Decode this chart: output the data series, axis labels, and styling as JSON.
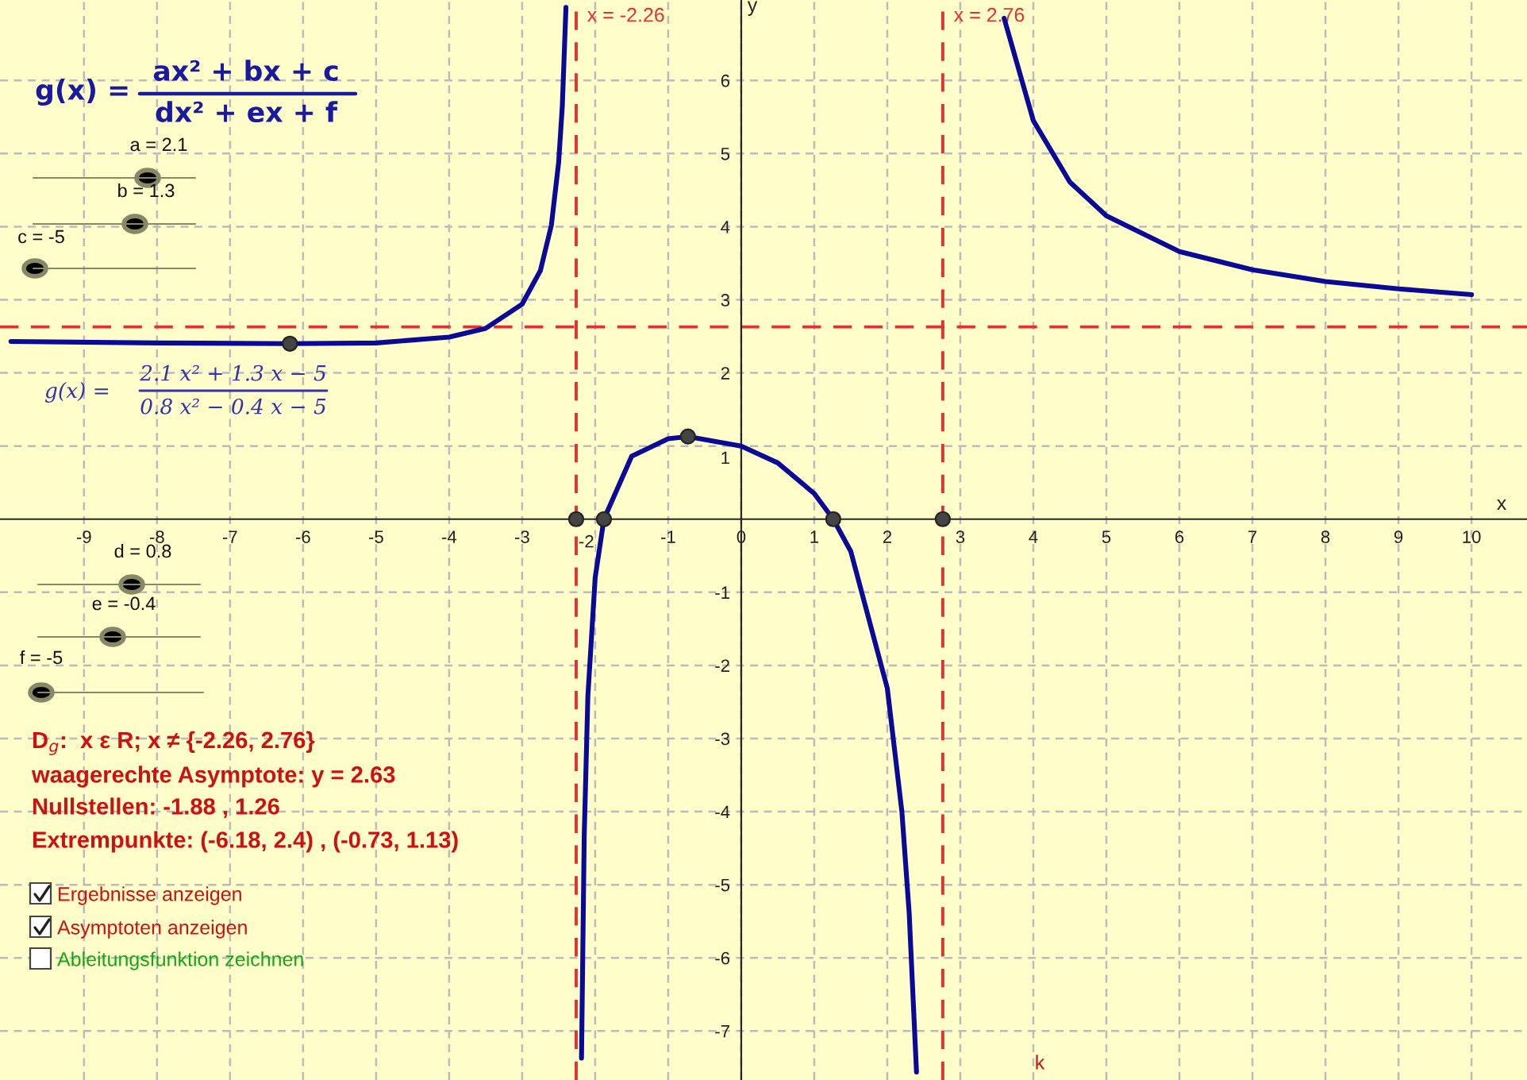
{
  "chart_data": {
    "type": "line",
    "xlabel": "x",
    "ylabel": "y",
    "xlim": [
      -10.15,
      10.76
    ],
    "ylim": [
      -7.67,
      7.1
    ],
    "xticks": [
      -9,
      -8,
      -7,
      -6,
      -5,
      -4,
      -3,
      -2,
      -1,
      0,
      1,
      2,
      3,
      4,
      5,
      6,
      7,
      8,
      9,
      10
    ],
    "yticks": [
      -7,
      -6,
      -5,
      -4,
      -3,
      -2,
      -1,
      1,
      2,
      3,
      4,
      5,
      6
    ],
    "grid": true,
    "line_style": "solid",
    "series": [
      {
        "type": "line",
        "color": "#0a0a96",
        "x": [
          -10,
          -8,
          -6.18,
          -5,
          -4,
          -3.5,
          -3,
          -2.75,
          -2.6,
          -2.5,
          -2.45,
          -2.4
        ],
        "values": [
          2.43,
          2.41,
          2.4,
          2.41,
          2.49,
          2.61,
          2.94,
          3.4,
          4.02,
          4.88,
          5.65,
          7.0
        ]
      },
      {
        "type": "line",
        "color": "#0a0a96",
        "x": [
          -2.187,
          -2.15,
          -2.1,
          -2,
          -1.88,
          -1.5,
          -1,
          -0.73,
          0,
          0.5,
          1,
          1.26,
          1.5,
          2,
          2.2,
          2.3,
          2.4
        ],
        "values": [
          -7.37,
          -4.33,
          -2.42,
          -0.8,
          0,
          0.86,
          1.1,
          1.13,
          1.0,
          0.77,
          0.35,
          0,
          -0.44,
          -2.31,
          -4.0,
          -5.39,
          -7.56
        ]
      },
      {
        "type": "line",
        "color": "#0a0a96",
        "x": [
          3.6,
          4,
          4.5,
          5,
          6,
          7,
          8,
          9,
          10
        ],
        "values": [
          6.85,
          5.45,
          4.61,
          4.15,
          3.66,
          3.41,
          3.25,
          3.15,
          3.07
        ]
      },
      {
        "type": "scatter",
        "color": "#444444",
        "marker": "circle",
        "x": [
          -6.18,
          -0.73,
          -1.88,
          1.26,
          -2.26,
          2.76
        ],
        "values": [
          2.4,
          1.13,
          0,
          0,
          0,
          0
        ]
      }
    ],
    "ref_lines": [
      {
        "axis": "x",
        "value": -2.26,
        "label": "x = -2.26",
        "color": "#dd3333",
        "line_style": "dashed"
      },
      {
        "axis": "x",
        "value": 2.76,
        "label": "x = 2.76",
        "color": "#dd3333",
        "line_style": "dashed"
      },
      {
        "axis": "y",
        "value": 2.63,
        "color": "#dd3333",
        "line_style": "dashed"
      }
    ],
    "annotations": [
      "g(x) =",
      "ax² + bx + c",
      "dx² + ex + f",
      "a = 2.1",
      "b = 1.3",
      "c = -5",
      "g(x) =",
      "2.1 x² + 1.3 x − 5",
      "0.8 x² − 0.4 x − 5",
      "d = 0.8",
      "e = -0.4",
      "f = -5",
      "D$_{g}$:  x ε R; x ≠ {-2.26, 2.76}",
      "waagerechte Asymptote: y = 2.63",
      "Nullstellen: -1.88 , 1.26",
      "Extrempunkte: (-6.18, 2.4) , (-0.73, 1.13)",
      "Ergebnisse anzeigen",
      "Asymptoten anzeigen",
      "Ableitungsfunktion zeichnen",
      "k"
    ]
  }
}
